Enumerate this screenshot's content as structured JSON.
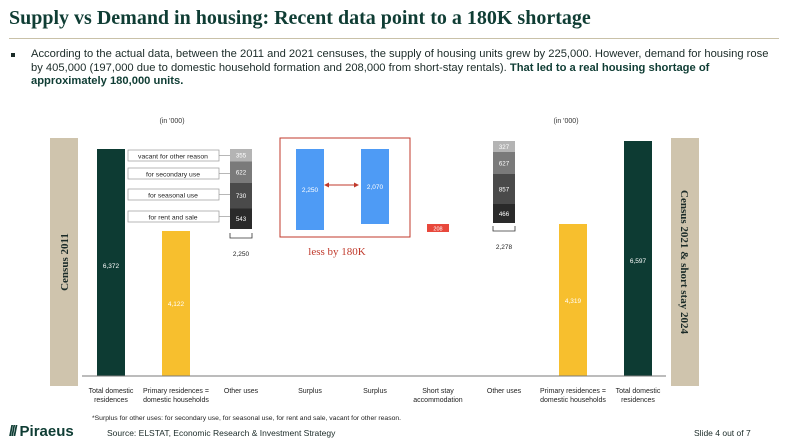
{
  "title": "Supply vs Demand in housing: Recent data point to a 180K shortage",
  "bullet": {
    "text": "According to the actual data, between the 2011 and 2021 censuses, the supply of housing units grew by 225,000. However, demand for housing rose by 405,000 (197,000 due to domestic household formation and 208,000 from short-stay rentals). ",
    "bold": "That led to a real housing shortage of approximately 180,000 units."
  },
  "chart_data": {
    "type": "bar",
    "title": "Supply vs Demand in housing",
    "unit_left": "(in '000)",
    "unit_right": "(in '000)",
    "side_label_left": "Census 2011",
    "side_label_right": "Census 2021 & short stay 2024",
    "categories": [
      "Total domestic residences",
      "Primary residences = domestic households",
      "Other uses",
      "Surplus",
      "Surplus",
      "Short stay accommodation",
      "Other uses",
      "Primary residences = domestic households",
      "Total domestic residences"
    ],
    "bars": [
      {
        "category": "Total domestic residences",
        "value": 6372,
        "label": "6,372",
        "color": "#0d3b33"
      },
      {
        "category": "Primary residences = domestic households",
        "value": 4122,
        "label": "4,122",
        "color": "#f7bf2e"
      },
      {
        "category": "Surplus",
        "value": 2250,
        "label": "2,250",
        "color": "#4e9bf5"
      },
      {
        "category": "Surplus",
        "value": 2070,
        "label": "2,070",
        "color": "#4e9bf5"
      },
      {
        "category": "Short stay accommodation",
        "value": 208,
        "label": "208",
        "color": "#e8483c"
      },
      {
        "category": "Primary residences = domestic households",
        "value": 4319,
        "label": "4,319",
        "color": "#f7bf2e"
      },
      {
        "category": "Total domestic residences",
        "value": 6597,
        "label": "6,597",
        "color": "#0d3b33"
      }
    ],
    "stacks": [
      {
        "category": "Other uses",
        "total": "2,250",
        "segments": [
          {
            "name": "for rent and sale",
            "value": 543,
            "label": "543",
            "color": "#2a2a2a"
          },
          {
            "name": "for seasonal use",
            "value": 730,
            "label": "730",
            "color": "#4a4a4a"
          },
          {
            "name": "for secondary use",
            "value": 622,
            "label": "622",
            "color": "#7a7a7a"
          },
          {
            "name": "vacant for other reason",
            "value": 355,
            "label": "355",
            "color": "#b4b4b4"
          }
        ]
      },
      {
        "category": "Other uses",
        "total": "2,278",
        "segments": [
          {
            "name": "for rent and sale",
            "value": 466,
            "label": "466",
            "color": "#2a2a2a"
          },
          {
            "name": "for seasonal use",
            "value": 857,
            "label": "857",
            "color": "#4a4a4a"
          },
          {
            "name": "for secondary use",
            "value": 627,
            "label": "627",
            "color": "#7a7a7a"
          },
          {
            "name": "vacant for other reason",
            "value": 327,
            "label": "327",
            "color": "#b4b4b4"
          }
        ]
      }
    ],
    "legend": [
      "vacant for other reason",
      "for secondary use",
      "for seasonal use",
      "for rent and sale"
    ],
    "annotation": "less by 180K",
    "ylim": [
      0,
      7000
    ]
  },
  "footnote": "*Surplus for other uses: for secondary use, for seasonal use, for rent and sale, vacant for other reason.",
  "logo": {
    "slashes": "///",
    "name": "Piraeus"
  },
  "source": "Source: ELSTAT, Economic Research & Investment Strategy",
  "slide_number": "Slide  4 out of 7"
}
